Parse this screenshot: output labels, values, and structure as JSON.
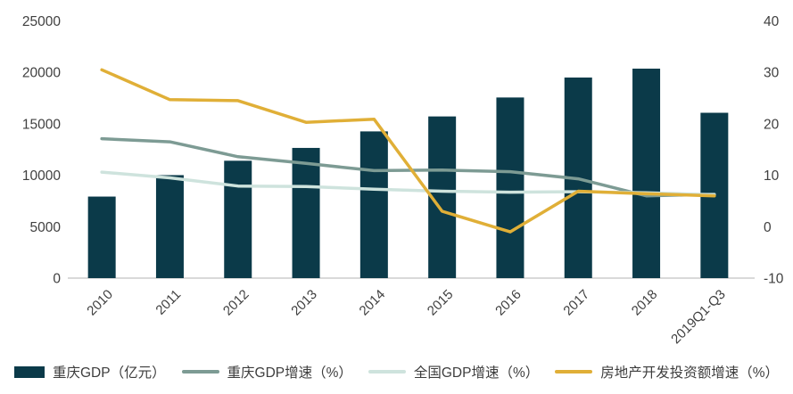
{
  "chart_data": {
    "type": "combo-bar-line",
    "title": "",
    "categories": [
      "2010",
      "2011",
      "2012",
      "2013",
      "2014",
      "2015",
      "2016",
      "2017",
      "2018",
      "2019Q1-Q3"
    ],
    "series": [
      {
        "name": "重庆GDP（亿元）",
        "type": "bar",
        "axis": "left",
        "color": "#0b3a49",
        "values": [
          7926,
          10011,
          11410,
          12657,
          14263,
          15717,
          17559,
          19500,
          20363,
          16073
        ]
      },
      {
        "name": "重庆GDP增速（%）",
        "type": "line",
        "axis": "right",
        "color": "#7d9b94",
        "values": [
          17.1,
          16.5,
          13.6,
          12.3,
          10.9,
          11.0,
          10.7,
          9.3,
          6.0,
          6.3
        ]
      },
      {
        "name": "全国GDP增速（%）",
        "type": "line",
        "axis": "right",
        "color": "#cee3dd",
        "values": [
          10.6,
          9.5,
          7.9,
          7.8,
          7.3,
          6.9,
          6.7,
          6.8,
          6.6,
          6.2
        ]
      },
      {
        "name": "房地产开发投资额增速（%）",
        "type": "line",
        "axis": "right",
        "color": "#e0af37",
        "values": [
          30.5,
          24.7,
          24.5,
          20.3,
          20.9,
          3.0,
          -1.0,
          6.9,
          6.4,
          6.0
        ]
      }
    ],
    "left_axis": {
      "min": 0,
      "max": 25000,
      "step": 5000,
      "tick_labels": [
        "0",
        "5000",
        "10000",
        "15000",
        "20000",
        "25000"
      ]
    },
    "right_axis": {
      "min": -10,
      "max": 40,
      "step": 10,
      "tick_labels": [
        "-10",
        "0",
        "10",
        "20",
        "30",
        "40"
      ]
    },
    "grid": false,
    "legend_position": "bottom",
    "axis_line_color": "#d9d9d9",
    "tick_text_color": "#404040"
  }
}
